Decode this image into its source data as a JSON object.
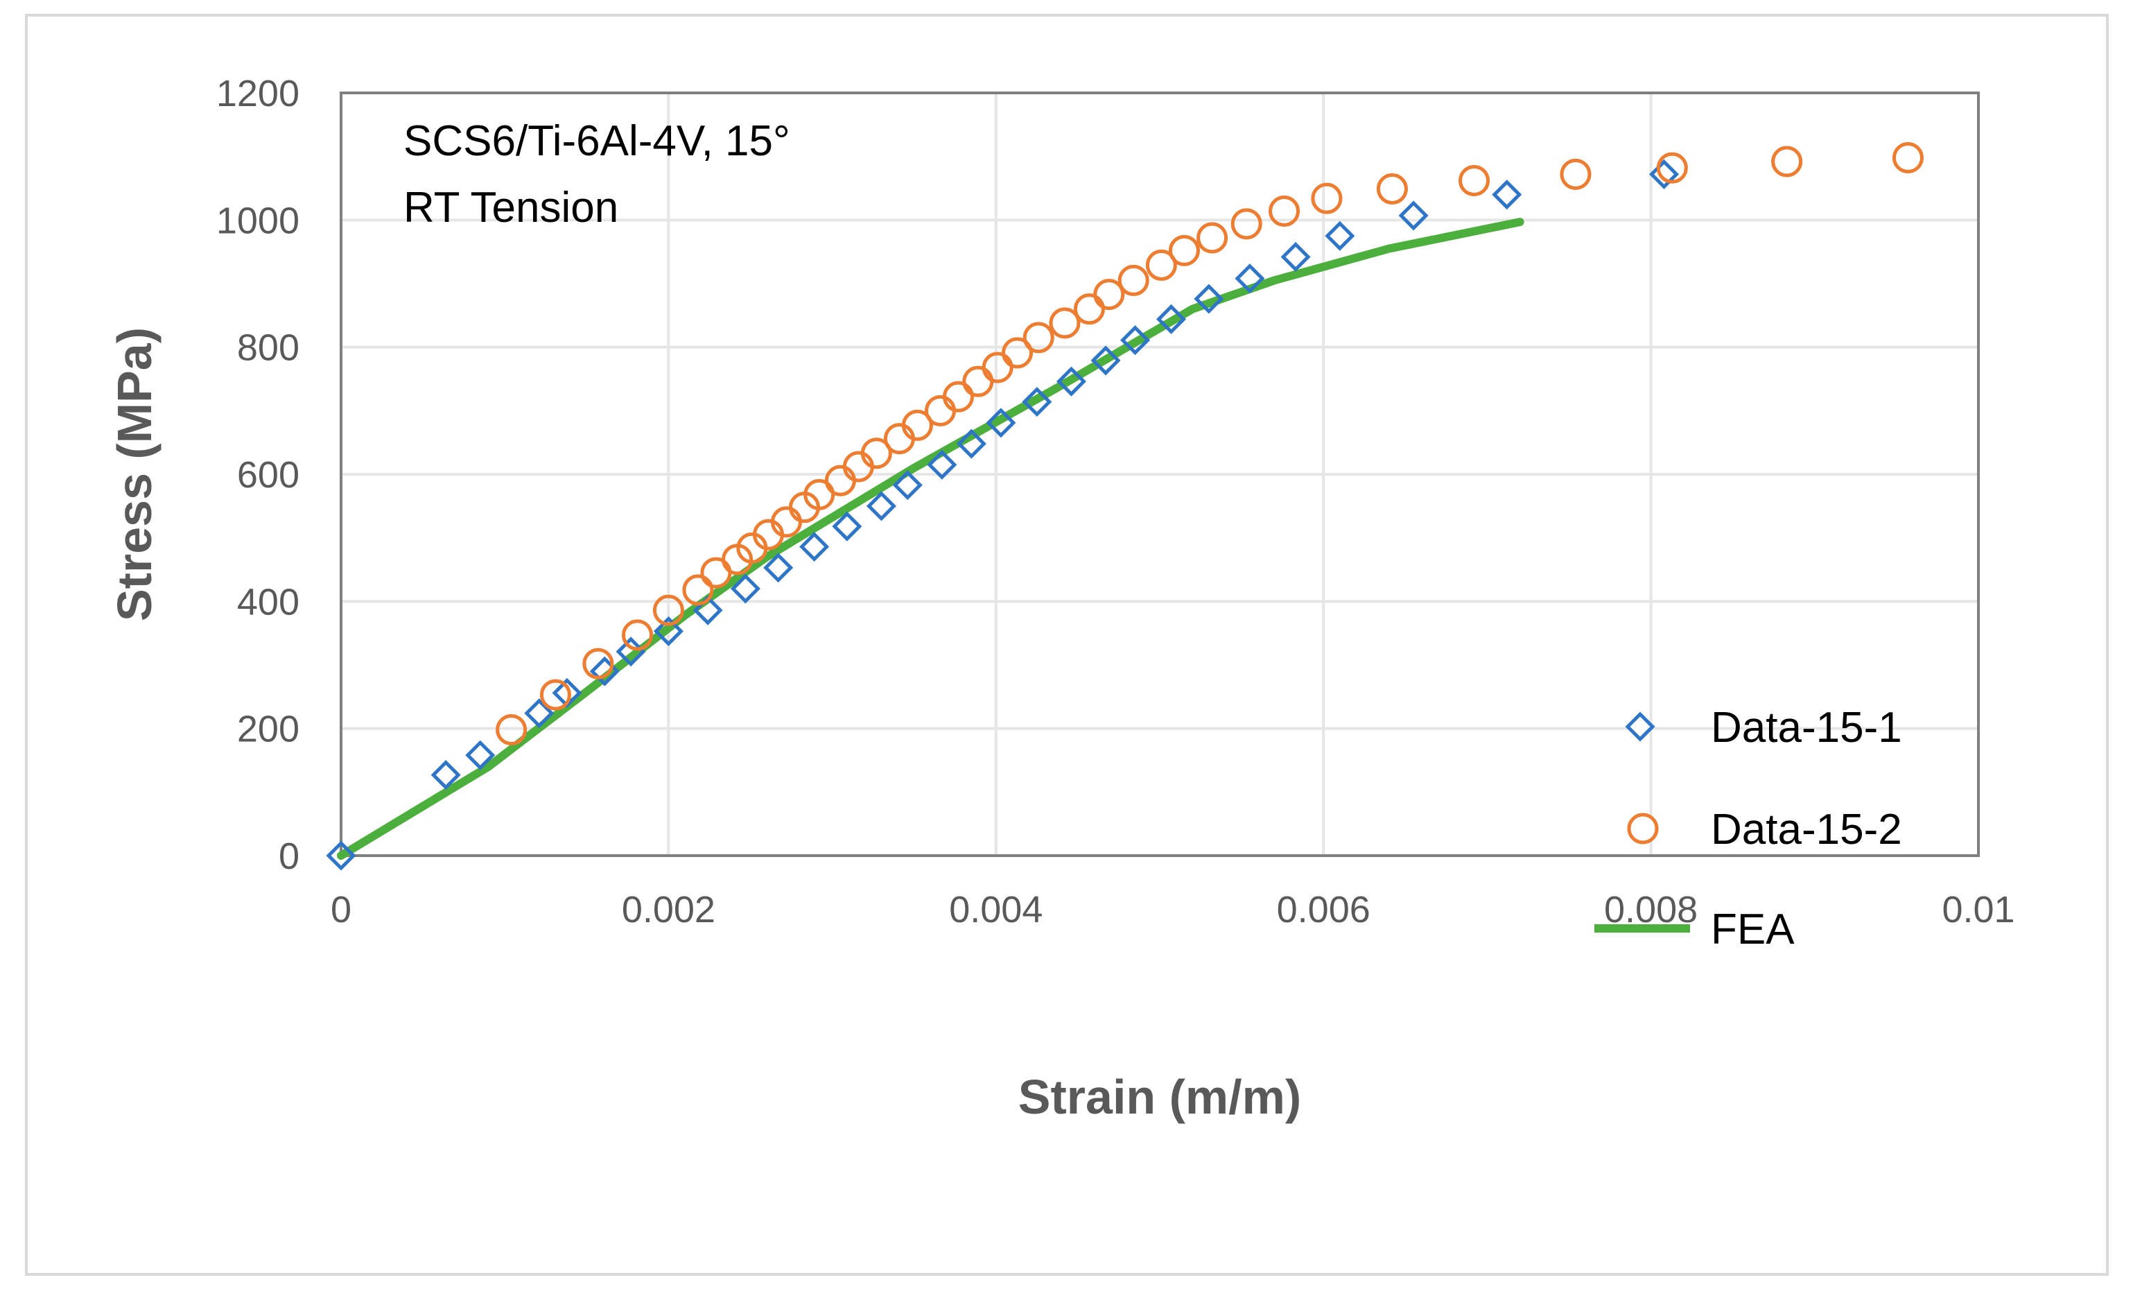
{
  "chart_data": {
    "type": "scatter",
    "title": "",
    "annotation": [
      "SCS6/Ti-6Al-4V, 15°",
      "RT Tension"
    ],
    "xlabel": "Strain (m/m)",
    "ylabel": "Stress (MPa)",
    "xlim": [
      0,
      0.01
    ],
    "ylim": [
      0,
      1200
    ],
    "x_ticks": [
      0,
      0.002,
      0.004,
      0.006,
      0.008,
      0.01
    ],
    "x_tick_labels": [
      "0",
      "0.002",
      "0.004",
      "0.006",
      "0.008",
      "0.01"
    ],
    "y_ticks": [
      0,
      200,
      400,
      600,
      800,
      1000,
      1200
    ],
    "y_tick_labels": [
      "0",
      "200",
      "400",
      "600",
      "800",
      "1000",
      "1200"
    ],
    "grid": true,
    "legend_position": "right",
    "series": [
      {
        "name": "Data-15-1",
        "kind": "scatter",
        "marker": "diamond",
        "color": "#2e75c8",
        "points": [
          [
            0,
            0
          ],
          [
            0.00064,
            127
          ],
          [
            0.00085,
            158
          ],
          [
            0.00121,
            224
          ],
          [
            0.00138,
            256
          ],
          [
            0.00161,
            290
          ],
          [
            0.00177,
            321
          ],
          [
            0.002,
            353
          ],
          [
            0.00224,
            386
          ],
          [
            0.00247,
            420
          ],
          [
            0.00267,
            453
          ],
          [
            0.00289,
            486
          ],
          [
            0.00309,
            518
          ],
          [
            0.0033,
            550
          ],
          [
            0.00346,
            583
          ],
          [
            0.00367,
            615
          ],
          [
            0.00385,
            648
          ],
          [
            0.00403,
            681
          ],
          [
            0.00425,
            714
          ],
          [
            0.00446,
            746
          ],
          [
            0.00467,
            779
          ],
          [
            0.00485,
            811
          ],
          [
            0.00507,
            844
          ],
          [
            0.0053,
            876
          ],
          [
            0.00555,
            908
          ],
          [
            0.00583,
            942
          ],
          [
            0.0061,
            975
          ],
          [
            0.00655,
            1007
          ],
          [
            0.00712,
            1040
          ],
          [
            0.00808,
            1072
          ]
        ]
      },
      {
        "name": "Data-15-2",
        "kind": "scatter",
        "marker": "circle",
        "color": "#ed7d31",
        "points": [
          [
            0.00104,
            198
          ],
          [
            0.00131,
            253
          ],
          [
            0.00157,
            302
          ],
          [
            0.00181,
            347
          ],
          [
            0.002,
            386
          ],
          [
            0.00218,
            418
          ],
          [
            0.00229,
            445
          ],
          [
            0.00242,
            466
          ],
          [
            0.00251,
            484
          ],
          [
            0.00261,
            505
          ],
          [
            0.00272,
            525
          ],
          [
            0.00283,
            548
          ],
          [
            0.00292,
            568
          ],
          [
            0.00305,
            590
          ],
          [
            0.00316,
            612
          ],
          [
            0.00327,
            633
          ],
          [
            0.00341,
            656
          ],
          [
            0.00352,
            677
          ],
          [
            0.00366,
            700
          ],
          [
            0.00377,
            722
          ],
          [
            0.00389,
            746
          ],
          [
            0.00401,
            768
          ],
          [
            0.00413,
            791
          ],
          [
            0.00426,
            815
          ],
          [
            0.00442,
            838
          ],
          [
            0.00457,
            860
          ],
          [
            0.00469,
            883
          ],
          [
            0.00484,
            905
          ],
          [
            0.00501,
            929
          ],
          [
            0.00515,
            952
          ],
          [
            0.00532,
            972
          ],
          [
            0.00553,
            994
          ],
          [
            0.00576,
            1014
          ],
          [
            0.00602,
            1034
          ],
          [
            0.00642,
            1049
          ],
          [
            0.00692,
            1062
          ],
          [
            0.00754,
            1072
          ],
          [
            0.00813,
            1082
          ],
          [
            0.00883,
            1092
          ],
          [
            0.00957,
            1098
          ]
        ]
      },
      {
        "name": "FEA",
        "kind": "line",
        "color": "#4cae3c",
        "points": [
          [
            0,
            0
          ],
          [
            0.0009,
            140
          ],
          [
            0.0015,
            258
          ],
          [
            0.0021,
            378
          ],
          [
            0.0026,
            470
          ],
          [
            0.0035,
            610
          ],
          [
            0.0044,
            740
          ],
          [
            0.0052,
            860
          ],
          [
            0.0057,
            905
          ],
          [
            0.0064,
            955
          ],
          [
            0.0072,
            997
          ]
        ]
      }
    ]
  }
}
